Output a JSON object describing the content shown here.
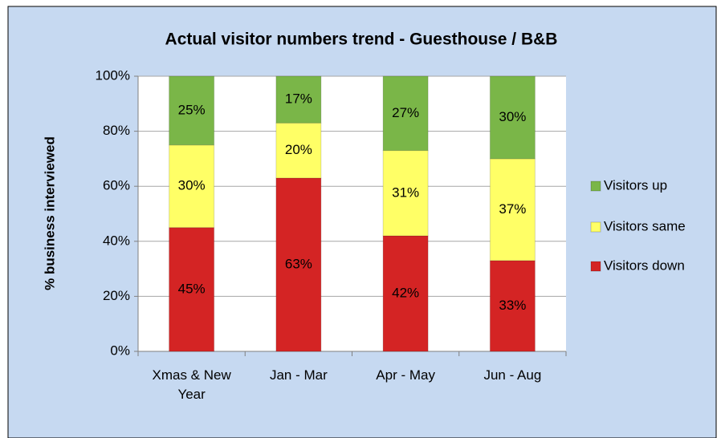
{
  "chart_data": {
    "type": "stacked_bar",
    "title": "Actual visitor numbers trend - Guesthouse / B&B",
    "y_label": "% business interviewed",
    "categories": [
      "Xmas & New Year",
      "Jan - Mar",
      "Apr - May",
      "Jun - Aug"
    ],
    "series": [
      {
        "name": "Visitors down",
        "color": "#d42424",
        "values": [
          45,
          63,
          42,
          33
        ],
        "value_labels": [
          "45%",
          "63%",
          "42%",
          "33%"
        ]
      },
      {
        "name": "Visitors same",
        "color": "#ffff66",
        "values": [
          30,
          20,
          31,
          37
        ],
        "value_labels": [
          "30%",
          "20%",
          "31%",
          "37%"
        ]
      },
      {
        "name": "Visitors up",
        "color": "#7ab648",
        "values": [
          25,
          17,
          27,
          30
        ],
        "value_labels": [
          "25%",
          "17%",
          "27%",
          "30%"
        ]
      }
    ],
    "ylim": [
      0,
      100
    ],
    "yticks": [
      {
        "value": 0,
        "label": "0%"
      },
      {
        "value": 20,
        "label": "20%"
      },
      {
        "value": 40,
        "label": "40%"
      },
      {
        "value": 60,
        "label": "60%"
      },
      {
        "value": 80,
        "label": "80%"
      },
      {
        "value": 100,
        "label": "100%"
      }
    ],
    "grid": true,
    "legend": "right"
  }
}
